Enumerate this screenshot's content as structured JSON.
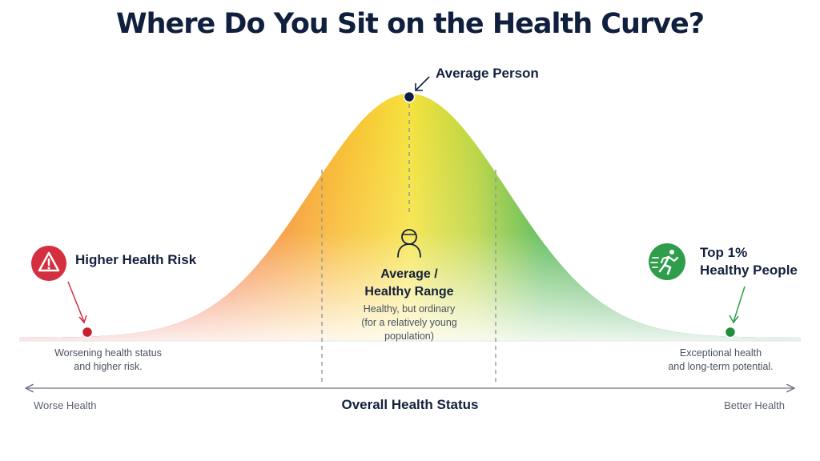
{
  "title": "Where Do You Sit on the Health Curve?",
  "peak": {
    "label": "Average Person"
  },
  "left": {
    "title": "Higher Health Risk",
    "desc_line1": "Worsening health status",
    "desc_line2": "and higher risk.",
    "icon": "warning-icon",
    "color": "#d32f3f"
  },
  "center": {
    "title_line1": "Average /",
    "title_line2": "Healthy Range",
    "desc_line1": "Healthy, but ordinary",
    "desc_line2": "(for a relatively young",
    "desc_line3": "population)",
    "icon": "person-icon"
  },
  "right": {
    "title_line1": "Top 1%",
    "title_line2": "Healthy People",
    "desc_line1": "Exceptional health",
    "desc_line2": "and long-term potential.",
    "icon": "running-person-icon",
    "color": "#2e9e4a"
  },
  "axis": {
    "left_label": "Worse Health",
    "title": "Overall Health Status",
    "right_label": "Better Health"
  },
  "colors": {
    "red": "#d71f2b",
    "orange": "#f7842a",
    "yellow": "#f4e03a",
    "green": "#1f9a3e",
    "navy": "#0f1f3d"
  }
}
